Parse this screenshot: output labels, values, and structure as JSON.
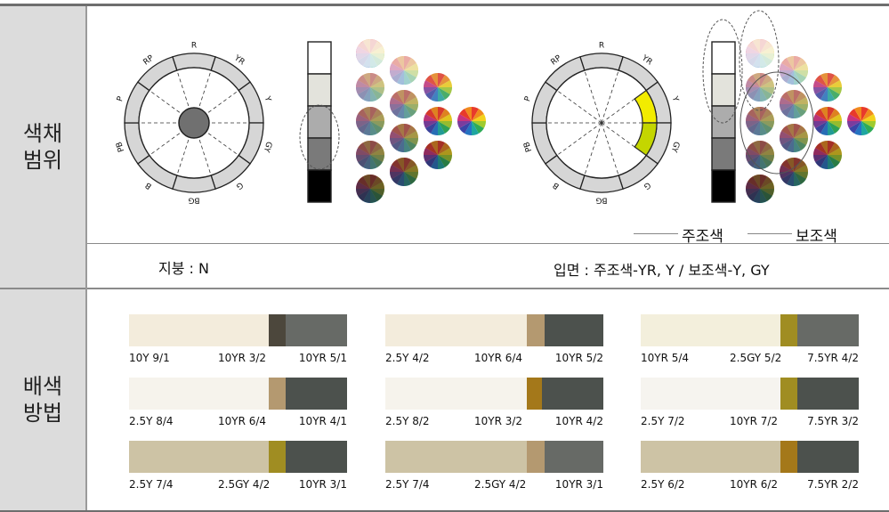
{
  "sections": {
    "range_label": "색채\n범위",
    "method_label": "배색\n방법"
  },
  "hue_labels": [
    "R",
    "YR",
    "Y",
    "GY",
    "G",
    "BG",
    "B",
    "PB",
    "P",
    "RP"
  ],
  "roof": {
    "text": "지붕 : N"
  },
  "facade": {
    "text": "입면 : 주조색-YR, Y / 보조색-Y, GY"
  },
  "legend": {
    "main": "주조색",
    "sub": "보조색"
  },
  "colors": {
    "highlight_yellow": "#f2ec00",
    "highlight_greenyellow": "#c4d600",
    "center_gray": "#707070"
  },
  "combos": [
    {
      "labels": [
        "10Y 9/1",
        "10YR 3/2",
        "10YR 5/1"
      ],
      "colors": [
        "#f3ecdc",
        "#4c473c",
        "#676a66"
      ],
      "widths": [
        0.64,
        0.08,
        0.28
      ]
    },
    {
      "labels": [
        "2.5Y 4/2",
        "10YR 6/4",
        "10YR 5/2"
      ],
      "colors": [
        "#f3ecdc",
        "#b49970",
        "#4c514d"
      ],
      "widths": [
        0.65,
        0.08,
        0.27
      ]
    },
    {
      "labels": [
        "10YR 5/4",
        "2.5GY 5/2",
        "7.5YR 4/2"
      ],
      "colors": [
        "#f3efdc",
        "#a08d22",
        "#676a66"
      ],
      "widths": [
        0.64,
        0.08,
        0.28
      ]
    },
    {
      "labels": [
        "2.5Y 8/4",
        "10YR 6/4",
        "10YR 4/1"
      ],
      "colors": [
        "#f6f3ec",
        "#b49970",
        "#4c514d"
      ],
      "widths": [
        0.64,
        0.08,
        0.28
      ]
    },
    {
      "labels": [
        "2.5Y 8/2",
        "10YR 3/2",
        "10YR 4/2"
      ],
      "colors": [
        "#f6f3ec",
        "#a4781a",
        "#4c514d"
      ],
      "widths": [
        0.65,
        0.07,
        0.28
      ]
    },
    {
      "labels": [
        "2.5Y 7/2",
        "10YR 7/2",
        "7.5YR 3/2"
      ],
      "colors": [
        "#f6f4ef",
        "#a08d22",
        "#4c514d"
      ],
      "widths": [
        0.64,
        0.08,
        0.28
      ]
    },
    {
      "labels": [
        "2.5Y 7/4",
        "2.5GY 4/2",
        "10YR 3/1"
      ],
      "colors": [
        "#cdc3a5",
        "#a08d22",
        "#4c514d"
      ],
      "widths": [
        0.64,
        0.08,
        0.28
      ]
    },
    {
      "labels": [
        "2.5Y 7/4",
        "2.5GY 4/2",
        "10YR 3/1"
      ],
      "colors": [
        "#cdc3a5",
        "#b49970",
        "#676a66"
      ],
      "widths": [
        0.65,
        0.08,
        0.27
      ]
    },
    {
      "labels": [
        "2.5Y 6/2",
        "10YR 6/2",
        "7.5YR 2/2"
      ],
      "colors": [
        "#cdc3a5",
        "#a4781a",
        "#4c514d"
      ],
      "widths": [
        0.64,
        0.08,
        0.28
      ]
    }
  ]
}
